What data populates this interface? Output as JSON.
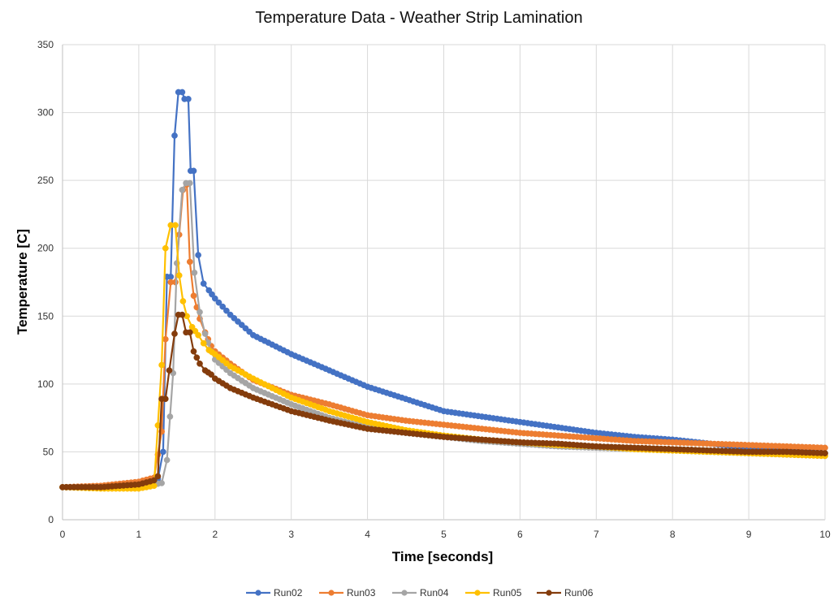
{
  "chart_data": {
    "type": "line",
    "title": "Temperature Data - Weather Strip Lamination",
    "xlabel": "Time [seconds]",
    "ylabel": "Temperature [C]",
    "xlim": [
      0,
      10
    ],
    "ylim": [
      0,
      350
    ],
    "x_ticks": [
      0,
      1,
      2,
      3,
      4,
      5,
      6,
      7,
      8,
      9,
      10
    ],
    "y_ticks": [
      0,
      50,
      100,
      150,
      200,
      250,
      300,
      350
    ],
    "grid": true,
    "legend_position": "bottom",
    "marker": "circle",
    "series": [
      {
        "name": "Run02",
        "color": "#4472C4",
        "points": [
          [
            0,
            24
          ],
          [
            0.5,
            24
          ],
          [
            1,
            26
          ],
          [
            1.2,
            28
          ],
          [
            1.25,
            30
          ],
          [
            1.32,
            50
          ],
          [
            1.37,
            179
          ],
          [
            1.42,
            179
          ],
          [
            1.47,
            283
          ],
          [
            1.52,
            315
          ],
          [
            1.57,
            315
          ],
          [
            1.6,
            310
          ],
          [
            1.65,
            310
          ],
          [
            1.68,
            257
          ],
          [
            1.72,
            257
          ],
          [
            1.78,
            195
          ],
          [
            1.85,
            174
          ],
          [
            1.92,
            169
          ],
          [
            2,
            163
          ],
          [
            2.2,
            151
          ],
          [
            2.5,
            136
          ],
          [
            3,
            122
          ],
          [
            3.5,
            110
          ],
          [
            4,
            98
          ],
          [
            4.5,
            89
          ],
          [
            5,
            80
          ],
          [
            5.5,
            76
          ],
          [
            6,
            72
          ],
          [
            6.5,
            68
          ],
          [
            7,
            64
          ],
          [
            7.5,
            61
          ],
          [
            8,
            59
          ],
          [
            8.5,
            56
          ],
          [
            9,
            53
          ],
          [
            9.5,
            51
          ],
          [
            10,
            49
          ]
        ]
      },
      {
        "name": "Run03",
        "color": "#ED7D31",
        "points": [
          [
            0,
            24
          ],
          [
            0.5,
            25
          ],
          [
            1,
            28
          ],
          [
            1.2,
            31
          ],
          [
            1.3,
            65
          ],
          [
            1.35,
            133
          ],
          [
            1.42,
            175
          ],
          [
            1.48,
            175
          ],
          [
            1.53,
            210
          ],
          [
            1.58,
            243
          ],
          [
            1.63,
            247
          ],
          [
            1.67,
            190
          ],
          [
            1.72,
            165
          ],
          [
            1.8,
            148
          ],
          [
            1.87,
            138
          ],
          [
            1.95,
            128
          ],
          [
            2,
            124
          ],
          [
            2.2,
            115
          ],
          [
            2.5,
            103
          ],
          [
            3,
            92
          ],
          [
            3.5,
            85
          ],
          [
            4,
            77
          ],
          [
            4.5,
            73
          ],
          [
            5,
            70
          ],
          [
            5.5,
            67
          ],
          [
            6,
            64
          ],
          [
            6.5,
            62
          ],
          [
            7,
            60
          ],
          [
            7.5,
            58
          ],
          [
            8,
            57
          ],
          [
            8.5,
            56
          ],
          [
            9,
            55
          ],
          [
            9.5,
            54
          ],
          [
            10,
            53
          ]
        ]
      },
      {
        "name": "Run04",
        "color": "#A5A5A5",
        "points": [
          [
            0,
            24
          ],
          [
            0.5,
            24
          ],
          [
            1,
            25
          ],
          [
            1.2,
            26
          ],
          [
            1.3,
            27
          ],
          [
            1.37,
            44
          ],
          [
            1.45,
            108
          ],
          [
            1.5,
            189
          ],
          [
            1.57,
            243
          ],
          [
            1.62,
            248
          ],
          [
            1.67,
            248
          ],
          [
            1.73,
            182
          ],
          [
            1.8,
            153
          ],
          [
            1.87,
            137
          ],
          [
            1.95,
            124
          ],
          [
            2,
            118
          ],
          [
            2.2,
            108
          ],
          [
            2.5,
            97
          ],
          [
            3,
            85
          ],
          [
            3.5,
            75
          ],
          [
            4,
            68
          ],
          [
            4.5,
            64
          ],
          [
            5,
            61
          ],
          [
            5.5,
            58
          ],
          [
            6,
            56
          ],
          [
            6.5,
            54
          ],
          [
            7,
            53
          ],
          [
            7.5,
            52
          ],
          [
            8,
            51
          ],
          [
            8.5,
            50
          ],
          [
            9,
            49
          ],
          [
            9.5,
            48
          ],
          [
            10,
            47
          ]
        ]
      },
      {
        "name": "Run05",
        "color": "#FFC000",
        "points": [
          [
            0,
            24
          ],
          [
            0.5,
            23
          ],
          [
            1,
            23
          ],
          [
            1.2,
            25
          ],
          [
            1.3,
            114
          ],
          [
            1.35,
            200
          ],
          [
            1.42,
            217
          ],
          [
            1.48,
            217
          ],
          [
            1.53,
            180
          ],
          [
            1.58,
            161
          ],
          [
            1.63,
            150
          ],
          [
            1.7,
            142
          ],
          [
            1.78,
            136
          ],
          [
            1.85,
            130
          ],
          [
            1.92,
            125
          ],
          [
            2,
            122
          ],
          [
            2.2,
            113
          ],
          [
            2.5,
            104
          ],
          [
            3,
            90
          ],
          [
            3.5,
            80
          ],
          [
            4,
            72
          ],
          [
            4.5,
            66
          ],
          [
            5,
            62
          ],
          [
            5.5,
            59
          ],
          [
            6,
            57
          ],
          [
            6.5,
            55
          ],
          [
            7,
            54
          ],
          [
            7.5,
            52
          ],
          [
            8,
            51
          ],
          [
            8.5,
            50
          ],
          [
            9,
            49
          ],
          [
            9.5,
            48
          ],
          [
            10,
            47
          ]
        ]
      },
      {
        "name": "Run06",
        "color": "#843C0C",
        "points": [
          [
            0,
            24
          ],
          [
            0.5,
            24
          ],
          [
            1,
            26
          ],
          [
            1.2,
            29
          ],
          [
            1.25,
            32
          ],
          [
            1.3,
            89
          ],
          [
            1.35,
            89
          ],
          [
            1.4,
            110
          ],
          [
            1.47,
            137
          ],
          [
            1.52,
            151
          ],
          [
            1.57,
            151
          ],
          [
            1.62,
            138
          ],
          [
            1.67,
            138
          ],
          [
            1.72,
            124
          ],
          [
            1.8,
            115
          ],
          [
            1.87,
            110
          ],
          [
            1.95,
            107
          ],
          [
            2,
            104
          ],
          [
            2.2,
            97
          ],
          [
            2.5,
            90
          ],
          [
            3,
            80
          ],
          [
            3.5,
            73
          ],
          [
            4,
            67
          ],
          [
            4.5,
            64
          ],
          [
            5,
            61
          ],
          [
            5.5,
            59
          ],
          [
            6,
            57
          ],
          [
            6.5,
            56
          ],
          [
            7,
            54
          ],
          [
            7.5,
            53
          ],
          [
            8,
            52
          ],
          [
            8.5,
            51
          ],
          [
            9,
            50
          ],
          [
            9.5,
            50
          ],
          [
            10,
            49
          ]
        ]
      }
    ]
  }
}
